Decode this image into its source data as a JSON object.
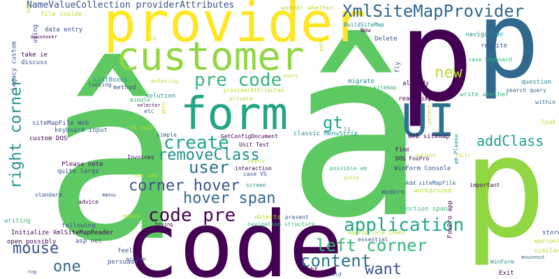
{
  "palette": {
    "dark_purple": "#440154",
    "indigo": "#3b528b",
    "blue": "#31688e",
    "teal": "#21908d",
    "green": "#35b779",
    "lime": "#90d743",
    "yellow": "#fde725",
    "background": "#ffffff"
  },
  "words": [
    {
      "id": "w01",
      "text": "â",
      "color": "#5ec962"
    },
    {
      "id": "w02",
      "text": "â",
      "color": "#5ec962"
    },
    {
      "id": "w03",
      "text": "code",
      "color": "#440154"
    },
    {
      "id": "w04",
      "text": "p",
      "color": "#440154"
    },
    {
      "id": "w05",
      "text": "p",
      "color": "#31688e"
    },
    {
      "id": "w06",
      "text": "p",
      "color": "#90d743"
    },
    {
      "id": "w07",
      "text": "provider",
      "color": "#fde725"
    },
    {
      "id": "w08",
      "text": "customer",
      "color": "#90d743"
    },
    {
      "id": "w09",
      "text": "form",
      "color": "#21a585"
    },
    {
      "id": "w10",
      "text": "UI",
      "color": "#2c728e"
    },
    {
      "id": "w11",
      "text": "XmlSiteMapProvider",
      "color": "#31688e"
    },
    {
      "id": "w12",
      "text": "pre code",
      "color": "#35b779"
    },
    {
      "id": "w13",
      "text": "right corner",
      "color": "#21908d"
    },
    {
      "id": "w14",
      "text": "new",
      "color": "#b5de2b"
    },
    {
      "id": "w15",
      "text": "create",
      "color": "#21a585"
    },
    {
      "id": "w16",
      "text": "removeClass",
      "color": "#21908d"
    },
    {
      "id": "w17",
      "text": "user",
      "color": "#2c728e"
    },
    {
      "id": "w18",
      "text": "gt",
      "color": "#21a585"
    },
    {
      "id": "w19",
      "text": "addClass",
      "color": "#1f9e89"
    },
    {
      "id": "w20",
      "text": "corner hover",
      "color": "#3b528b"
    },
    {
      "id": "w21",
      "text": "hover span",
      "color": "#31688e"
    },
    {
      "id": "w22",
      "text": "code pre",
      "color": "#440154"
    },
    {
      "id": "w23",
      "text": "application",
      "color": "#21a585"
    },
    {
      "id": "w24",
      "text": "left corner",
      "color": "#35b779"
    },
    {
      "id": "w25",
      "text": "mouse",
      "color": "#3b528b"
    },
    {
      "id": "w26",
      "text": "content",
      "color": "#2c728e"
    },
    {
      "id": "w27",
      "text": "one",
      "color": "#31688e"
    },
    {
      "id": "w28",
      "text": "want",
      "color": "#3b528b"
    },
    {
      "id": "w29",
      "text": "NameValueCollection providerAttributes",
      "color": "#3b528b"
    },
    {
      "id": "w30",
      "text": "file inside",
      "color": "#b5de2b"
    },
    {
      "id": "w31",
      "text": "data entry",
      "color": "#3b528b"
    },
    {
      "id": "w32",
      "text": "wonder whether",
      "color": "#b5de2b"
    },
    {
      "id": "w33",
      "text": "BuildSiteMap",
      "color": "#21908d"
    },
    {
      "id": "w34",
      "text": "Now",
      "color": "#440154"
    },
    {
      "id": "w35",
      "text": "Delete",
      "color": "#3b528b"
    },
    {
      "id": "w36",
      "text": "navigation",
      "color": "#21908d"
    },
    {
      "id": "w37",
      "text": "rewrite",
      "color": "#3b528b"
    },
    {
      "id": "w38",
      "text": "case keyboard",
      "color": "#35b779"
    },
    {
      "id": "w39",
      "text": "question",
      "color": "#21908d"
    },
    {
      "id": "w40",
      "text": "search query",
      "color": "#31688e"
    },
    {
      "id": "w41",
      "text": "within",
      "color": "#31688e"
    },
    {
      "id": "w42",
      "text": "look",
      "color": "#b5de2b"
    },
    {
      "id": "w43",
      "text": "take ie",
      "color": "#440154"
    },
    {
      "id": "w44",
      "text": "discuss",
      "color": "#3b528b"
    },
    {
      "id": "w45",
      "text": "ListBoxes",
      "color": "#21908d"
    },
    {
      "id": "w46",
      "text": "looking",
      "color": "#3b528b"
    },
    {
      "id": "w47",
      "text": "method",
      "color": "#3b528b"
    },
    {
      "id": "w48",
      "text": "entering",
      "color": "#b5de2b"
    },
    {
      "id": "w49",
      "text": "providerAttributes",
      "color": "#b5de2b"
    },
    {
      "id": "w50",
      "text": "solution",
      "color": "#21908d"
    },
    {
      "id": "w51",
      "text": "private",
      "color": "#b5de2b"
    },
    {
      "id": "w52",
      "text": "middle",
      "color": "#35b779"
    },
    {
      "id": "w53",
      "text": "etc",
      "color": "#3b528b"
    },
    {
      "id": "w54",
      "text": "migrate",
      "color": "#21908d"
    },
    {
      "id": "w55",
      "text": "sitemap",
      "color": "#35b779"
    },
    {
      "id": "w56",
      "text": "already",
      "color": "#440154"
    },
    {
      "id": "w57",
      "text": "read simple",
      "color": "#440154"
    },
    {
      "id": "w58",
      "text": "write another",
      "color": "#35b779"
    },
    {
      "id": "w59",
      "text": "siteMapFile Web",
      "color": "#3b528b"
    },
    {
      "id": "w60",
      "text": "keyboard input",
      "color": "#31688e"
    },
    {
      "id": "w61",
      "text": "VS Unit",
      "color": "#b5de2b"
    },
    {
      "id": "w62",
      "text": "GetConfigDocument",
      "color": "#440154"
    },
    {
      "id": "w63",
      "text": "Unit Test",
      "color": "#440154"
    },
    {
      "id": "w64",
      "text": "classic MenuStrip",
      "color": "#21908d"
    },
    {
      "id": "w65",
      "text": "custom DOS",
      "color": "#440154"
    },
    {
      "id": "w66",
      "text": "simple",
      "color": "#3b528b"
    },
    {
      "id": "w67",
      "text": "Web sitemap",
      "color": "#440154"
    },
    {
      "id": "w68",
      "text": "Please note",
      "color": "#440154"
    },
    {
      "id": "w69",
      "text": "quite large",
      "color": "#3b528b"
    },
    {
      "id": "w70",
      "text": "Invoices",
      "color": "#440154"
    },
    {
      "id": "w71",
      "text": "interaction",
      "color": "#440154"
    },
    {
      "id": "w72",
      "text": "non asp",
      "color": "#b5de2b"
    },
    {
      "id": "w73",
      "text": "case VS",
      "color": "#3b528b"
    },
    {
      "id": "w74",
      "text": "possible em",
      "color": "#35b779"
    },
    {
      "id": "w75",
      "text": "Find",
      "color": "#440154"
    },
    {
      "id": "w76",
      "text": "WinForm Console",
      "color": "#3b528b"
    },
    {
      "id": "w77",
      "text": "DOS FoxPro",
      "color": "#440154"
    },
    {
      "id": "w78",
      "text": "Add siteMapFile",
      "color": "#31688e"
    },
    {
      "id": "w79",
      "text": "workaround",
      "color": "#b5de2b"
    },
    {
      "id": "w80",
      "text": "important",
      "color": "#440154"
    },
    {
      "id": "w81",
      "text": "screen",
      "color": "#21908d"
    },
    {
      "id": "w82",
      "text": "modern",
      "color": "#3b528b"
    },
    {
      "id": "w83",
      "text": "function span",
      "color": "#35b779"
    },
    {
      "id": "w84",
      "text": "standard",
      "color": "#3b528b"
    },
    {
      "id": "w85",
      "text": "advice",
      "color": "#440154"
    },
    {
      "id": "w86",
      "text": "menu",
      "color": "#3b528b"
    },
    {
      "id": "w87",
      "text": "means",
      "color": "#b5de2b"
    },
    {
      "id": "w88",
      "text": "objects",
      "color": "#b5de2b"
    },
    {
      "id": "w89",
      "text": "present",
      "color": "#3b528b"
    },
    {
      "id": "w90",
      "text": "writing",
      "color": "#35b779"
    },
    {
      "id": "w91",
      "text": "Initialize XmlSiteMapReader",
      "color": "#440154"
    },
    {
      "id": "w92",
      "text": "following",
      "color": "#3b528b"
    },
    {
      "id": "w93",
      "text": "navigation structure",
      "color": "#35b779"
    },
    {
      "id": "w94",
      "text": "appropriate items",
      "color": "#b5de2b"
    },
    {
      "id": "w95",
      "text": "open possibly",
      "color": "#440154"
    },
    {
      "id": "w96",
      "text": "asp net",
      "color": "#3b528b"
    },
    {
      "id": "w97",
      "text": "essential",
      "color": "#3b528b"
    },
    {
      "id": "w98",
      "text": "stored",
      "color": "#3b528b"
    },
    {
      "id": "w99",
      "text": "approach",
      "color": "#b5de2b"
    },
    {
      "id": "w100",
      "text": "feel",
      "color": "#3b528b"
    },
    {
      "id": "w101",
      "text": "action",
      "color": "#3b528b"
    },
    {
      "id": "w102",
      "text": "persuade",
      "color": "#3b528b"
    },
    {
      "id": "w103",
      "text": "right",
      "color": "#440154"
    },
    {
      "id": "w104",
      "text": "old",
      "color": "#3b528b"
    },
    {
      "id": "w105",
      "text": "Exit",
      "color": "#440154"
    },
    {
      "id": "w106",
      "text": "WinForm",
      "color": "#21908d"
    },
    {
      "id": "w107",
      "text": "similar read",
      "color": "#b5de2b"
    },
    {
      "id": "w108",
      "text": "mouseout",
      "color": "#31688e"
    },
    {
      "id": "w109",
      "text": "mouseover",
      "color": "#440154"
    },
    {
      "id": "w110",
      "text": "ul",
      "color": "#b5de2b"
    },
    {
      "id": "w111",
      "text": "every",
      "color": "#b5de2b"
    },
    {
      "id": "w112",
      "text": "selector",
      "color": "#440154"
    },
    {
      "id": "w113",
      "text": "li",
      "color": "#21908d"
    },
    {
      "id": "w114",
      "text": "jquery",
      "color": "#b5de2b"
    },
    {
      "id": "w115",
      "text": "going",
      "color": "#b5de2b"
    },
    {
      "id": "w116",
      "text": "trying",
      "color": "#440154"
    },
    {
      "id": "w117",
      "text": "top",
      "color": "#3b528b"
    },
    {
      "id": "w118",
      "text": "achieve",
      "color": "#b5de2b"
    },
    {
      "id": "w119",
      "text": "use",
      "color": "#b5de2b"
    },
    {
      "id": "w120",
      "text": "using",
      "color": "#3b528b"
    },
    {
      "id": "w121",
      "text": "legacy custom",
      "color": "#3b528b"
    },
    {
      "id": "w122",
      "text": "gets",
      "color": "#b5de2b"
    },
    {
      "id": "w123",
      "text": "path",
      "color": "#b5de2b"
    },
    {
      "id": "w124",
      "text": "fly",
      "color": "#3b528b"
    },
    {
      "id": "w125",
      "text": "select",
      "color": "#b5de2b"
    },
    {
      "id": "w126",
      "text": "em Please",
      "color": "#21908d"
    },
    {
      "id": "w127",
      "text": "FoxPro app",
      "color": "#440154"
    },
    {
      "id": "w128",
      "text": "fails",
      "color": "#b5de2b"
    }
  ]
}
